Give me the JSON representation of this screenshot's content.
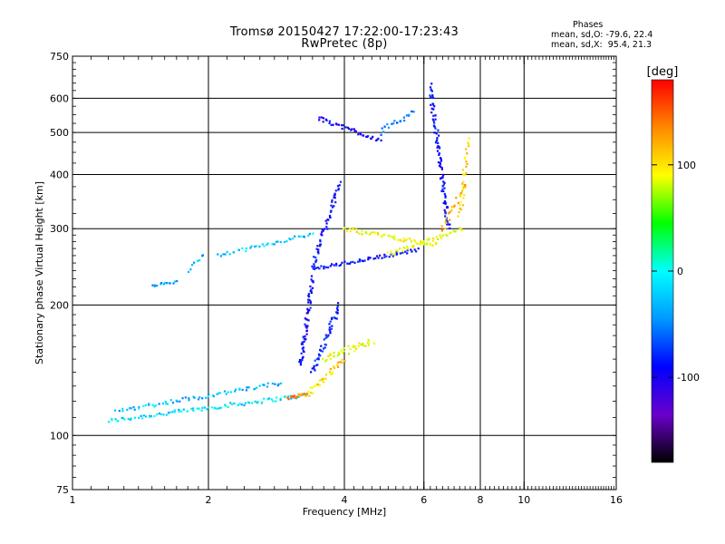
{
  "header": {
    "title_line1": "Tromsø 20150427 17:22:00-17:23:43",
    "title_line2": "RwPretec (8p)"
  },
  "phases": {
    "heading": "Phases",
    "line1": "mean, sd,O: -79.6, 22.4",
    "line2": "mean, sd,X:  95.4, 21.3"
  },
  "chart_data": {
    "type": "scatter",
    "xlabel": "Frequency [MHz]",
    "ylabel": "Stationary phase Virtual Height [km]",
    "x_scale": "log",
    "y_scale": "log",
    "xlim": [
      1,
      16
    ],
    "ylim": [
      75,
      750
    ],
    "x_ticks": [
      1,
      2,
      4,
      6,
      8,
      10,
      16
    ],
    "x_tick_labels": [
      "1",
      "2",
      "4",
      "6",
      "8",
      "10",
      "16"
    ],
    "y_ticks": [
      75,
      100,
      200,
      300,
      400,
      500,
      600,
      750
    ],
    "y_tick_labels": [
      "75",
      "100",
      "200",
      "300",
      "400",
      "500",
      "600",
      "750"
    ],
    "grid_x": [
      2,
      4,
      6,
      8,
      10
    ],
    "grid_y": [
      100,
      200,
      300,
      400,
      500,
      600
    ],
    "grid": true,
    "colorbar": {
      "label": "[deg]",
      "range": [
        -180,
        180
      ],
      "ticks": [
        100,
        0,
        -100
      ],
      "tick_labels": [
        "100",
        "0",
        "-100"
      ],
      "gradient": [
        "#ff0000",
        "#ff8800",
        "#ffff00",
        "#00ff00",
        "#00ffff",
        "#0099ff",
        "#0000ff",
        "#6a00cc",
        "#000000"
      ]
    },
    "traces": [
      {
        "f_start": 1.2,
        "f_end": 3.3,
        "h_start": 108,
        "h_end": 124,
        "phase": -30,
        "count": 95,
        "spread": 0.015
      },
      {
        "f_start": 1.25,
        "f_end": 2.9,
        "h_start": 114,
        "h_end": 132,
        "phase": -40,
        "count": 70,
        "spread": 0.015
      },
      {
        "f_start": 1.5,
        "f_end": 1.7,
        "h_start": 222,
        "h_end": 226,
        "phase": -45,
        "count": 14,
        "spread": 0.01
      },
      {
        "f_start": 1.8,
        "f_end": 1.95,
        "h_start": 240,
        "h_end": 262,
        "phase": -45,
        "count": 8,
        "spread": 0.01
      },
      {
        "f_start": 2.1,
        "f_end": 3.4,
        "h_start": 260,
        "h_end": 292,
        "phase": -40,
        "count": 40,
        "spread": 0.012
      },
      {
        "f_start": 3.0,
        "f_end": 3.3,
        "h_start": 122,
        "h_end": 125,
        "phase": 125,
        "count": 16,
        "spread": 0.01
      },
      {
        "f_start": 3.3,
        "f_end": 4.0,
        "h_start": 124,
        "h_end": 150,
        "phase": 95,
        "count": 35,
        "spread": 0.02
      },
      {
        "f_start": 3.6,
        "f_end": 4.6,
        "h_start": 150,
        "h_end": 165,
        "phase": 78,
        "count": 40,
        "spread": 0.025
      },
      {
        "f_start": 3.2,
        "f_end": 3.4,
        "h_start": 145,
        "h_end": 230,
        "phase": -100,
        "count": 60,
        "spread": 0.02
      },
      {
        "f_start": 3.4,
        "f_end": 3.9,
        "h_start": 140,
        "h_end": 200,
        "phase": -90,
        "count": 50,
        "spread": 0.02
      },
      {
        "f_start": 3.4,
        "f_end": 3.9,
        "h_start": 245,
        "h_end": 380,
        "phase": -100,
        "count": 55,
        "spread": 0.02
      },
      {
        "f_start": 3.4,
        "f_end": 5.8,
        "h_start": 242,
        "h_end": 268,
        "phase": -95,
        "count": 60,
        "spread": 0.012
      },
      {
        "f_start": 4.0,
        "f_end": 6.4,
        "h_start": 300,
        "h_end": 275,
        "phase": 80,
        "count": 55,
        "spread": 0.015
      },
      {
        "f_start": 5.0,
        "f_end": 7.3,
        "h_start": 262,
        "h_end": 300,
        "phase": 75,
        "count": 40,
        "spread": 0.015
      },
      {
        "f_start": 3.5,
        "f_end": 4.8,
        "h_start": 540,
        "h_end": 480,
        "phase": -105,
        "count": 40,
        "spread": 0.015
      },
      {
        "f_start": 4.8,
        "f_end": 5.7,
        "h_start": 500,
        "h_end": 560,
        "phase": -60,
        "count": 20,
        "spread": 0.02
      },
      {
        "f_start": 6.2,
        "f_end": 6.8,
        "h_start": 640,
        "h_end": 300,
        "phase": -100,
        "count": 90,
        "spread": 0.02
      },
      {
        "f_start": 7.2,
        "f_end": 7.5,
        "h_start": 320,
        "h_end": 480,
        "phase": 90,
        "count": 30,
        "spread": 0.02
      },
      {
        "f_start": 6.5,
        "f_end": 7.4,
        "h_start": 290,
        "h_end": 380,
        "phase": 110,
        "count": 25,
        "spread": 0.02
      }
    ]
  }
}
